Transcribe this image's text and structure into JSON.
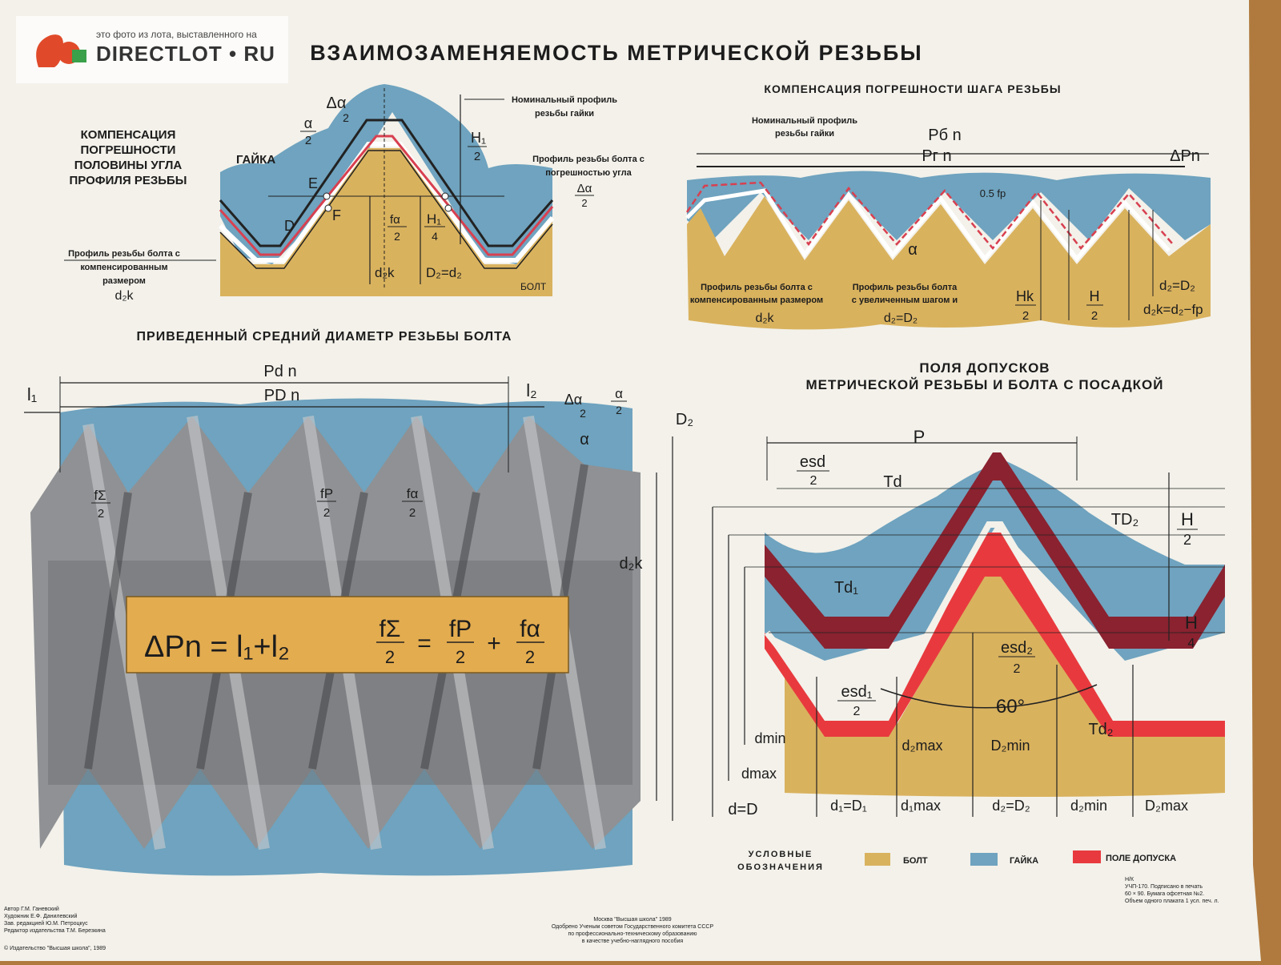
{
  "watermark": {
    "caption": "это фото из лота, выставленного на",
    "brand": "DIRECTLOT • RU"
  },
  "poster": {
    "title": "ВЗАИМОЗАМЕНЯЕМОСТЬ МЕТРИЧЕСКОЙ РЕЗЬБЫ",
    "colors": {
      "bolt": "#d9b25e",
      "nut": "#6fa3bf",
      "tolerance": "#e83a3e",
      "tolerance_dark": "#8a2230",
      "paper": "#f3f1ea"
    }
  },
  "half_angle": {
    "heading": [
      "КОМПЕНСАЦИЯ",
      "ПОГРЕШНОСТИ",
      "ПОЛОВИНЫ УГЛА",
      "ПРОФИЛЯ РЕЗЬБЫ"
    ],
    "nut_label": "ГАЙКА",
    "bolt_label": "БОЛТ",
    "nominal_label": [
      "Номинальный профиль",
      "резьбы гайки"
    ],
    "err_label": [
      "Профиль резьбы болта с",
      "погрешностью угла"
    ],
    "comp_label": [
      "Профиль резьбы болта с",
      "компенсированным",
      "размером"
    ],
    "comp_sym": "d₂k",
    "delta_alpha": "Δα",
    "two": "2",
    "alpha": "α",
    "E": "E",
    "F": "F",
    "D": "D",
    "H1": "H₁",
    "four": "4",
    "f_alpha": "fα",
    "d2k": "d₂k",
    "D2d2": "D₂=d₂"
  },
  "pitch": {
    "heading": "КОМПЕНСАЦИЯ ПОГРЕШНОСТИ ШАГА РЕЗЬБЫ",
    "nominal_label": [
      "Номинальный профиль",
      "резьбы гайки"
    ],
    "Pbn": "Pб n",
    "Pgn": "Pг n",
    "dPn": "ΔPn",
    "half_fp": "0.5 fp",
    "alpha": "α",
    "comp_label": [
      "Профиль резьбы болта с",
      "компенсированным размером"
    ],
    "comp_sym": "d₂k",
    "inc_label": [
      "Профиль резьбы болта",
      "с увеличенным шагом и"
    ],
    "inc_sym": "d₂=D₂",
    "Hk": "Hk",
    "H": "H",
    "two": "2",
    "d2D2": "d₂=D₂",
    "d2k_formula": "d₂k=d₂−fp"
  },
  "reduced": {
    "heading": "ПРИВЕДЕННЫЙ СРЕДНИЙ ДИАМЕТР РЕЗЬБЫ БОЛТА",
    "Pdn": "Pd n",
    "PDn": "PD n",
    "l1": "l₁",
    "l2": "l₂",
    "dalpha": "Δα",
    "alpha": "α",
    "two": "2",
    "D2": "D₂",
    "d2k": "d₂k",
    "f_sigma_small": "fΣ",
    "f_p": "fP",
    "f_alpha": "fα",
    "formula_left": "ΔPn = l₁+l₂",
    "formula_fs": "fΣ",
    "formula_fp": "fP",
    "formula_fa": "fα",
    "eq": "=",
    "plus": "+"
  },
  "tolerance": {
    "heading1": "ПОЛЯ ДОПУСКОВ",
    "heading2": "МЕТРИЧЕСКОЙ РЕЗЬБЫ И БОЛТА С ПОСАДКОЙ",
    "P": "P",
    "esd": "esd",
    "Td": "Td",
    "TD2": "TD₂",
    "H": "H",
    "two": "2",
    "four": "4",
    "Td1": "Td₁",
    "esd2": "esd₂",
    "esd1": "esd₁",
    "angle": "60°",
    "Td2": "Td₂",
    "dmin": "dmin",
    "dmax": "dmax",
    "dD": "d=D",
    "d2max": "d₂max",
    "D2min": "D₂min",
    "d1D1": "d₁=D₁",
    "d1max": "d₁max",
    "d2D2": "d₂=D₂",
    "d2min": "d₂min",
    "D2max": "D₂max"
  },
  "legend": {
    "title": [
      "УСЛОВНЫЕ",
      "ОБОЗНАЧЕНИЯ"
    ],
    "items": [
      {
        "label": "БОЛТ",
        "color": "#d9b25e"
      },
      {
        "label": "ГАЙКА",
        "color": "#6fa3bf"
      },
      {
        "label": "ПОЛЕ ДОПУСКА",
        "color": "#e83a3e"
      }
    ]
  },
  "footer": {
    "authors": [
      "Автор Г.М. Ганевский",
      "Художник Е.Ф. Данилевский",
      "Зав. редакцией Ю.М. Петроцкус",
      "Редактор издательства Т.М. Березкина"
    ],
    "center": [
      "Москва \"Высшая школа\" 1989",
      "Одобрено Ученым советом Государственного комитета СССР",
      "по профессионально-техническому образованию",
      "в качестве учебно-наглядного пособия"
    ],
    "right": [
      "Н/К",
      "УЧП-170. Подписано в печать",
      "60 × 90. Бумага офсетная №2.",
      "Объем одного плаката 1 усл. печ. л."
    ],
    "copyright": "© Издательство \"Высшая школа\", 1989"
  }
}
